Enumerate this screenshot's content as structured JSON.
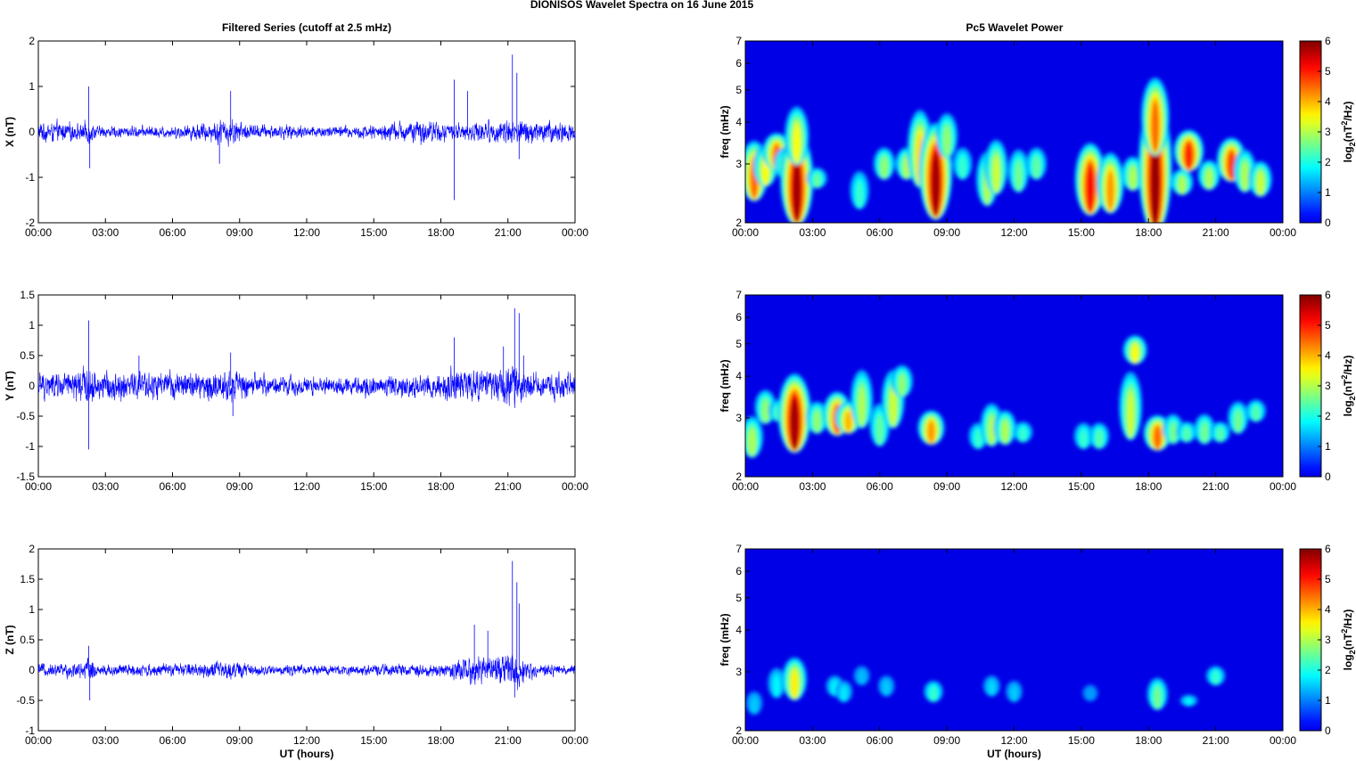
{
  "figure": {
    "title": "DIONISOS Wavelet Spectra on 16 June      2015",
    "left_title": "Filtered Series (cutoff at 2.5 mHz)",
    "right_title": "Pc5 Wavelet Power",
    "xlabel": "UT (hours)"
  },
  "chart_data": [
    {
      "type": "line",
      "component": "X",
      "ylabel": "X (nT)",
      "xlim": [
        0,
        24
      ],
      "ylim": [
        -2,
        2
      ],
      "yticks": [
        -2,
        -1,
        0,
        1,
        2
      ],
      "xticks": [
        "00:00",
        "03:00",
        "06:00",
        "09:00",
        "12:00",
        "15:00",
        "18:00",
        "21:00",
        "00:00"
      ],
      "color": "#0000ff",
      "noise_envelope": [
        [
          0,
          0.25
        ],
        [
          1.0,
          0.25
        ],
        [
          2.0,
          0.2
        ],
        [
          2.2,
          0.35
        ],
        [
          2.6,
          0.15
        ],
        [
          4,
          0.15
        ],
        [
          6,
          0.15
        ],
        [
          7.5,
          0.25
        ],
        [
          8.5,
          0.35
        ],
        [
          9.5,
          0.2
        ],
        [
          11,
          0.18
        ],
        [
          13,
          0.15
        ],
        [
          15,
          0.18
        ],
        [
          16,
          0.25
        ],
        [
          17.5,
          0.3
        ],
        [
          18.5,
          0.2
        ],
        [
          19.5,
          0.25
        ],
        [
          20.5,
          0.3
        ],
        [
          21.3,
          0.35
        ],
        [
          22,
          0.3
        ],
        [
          24,
          0.25
        ]
      ],
      "spikes": [
        [
          2.25,
          1.0
        ],
        [
          2.3,
          -0.8
        ],
        [
          8.6,
          0.9
        ],
        [
          8.1,
          -0.7
        ],
        [
          18.6,
          1.15
        ],
        [
          18.6,
          -1.5
        ],
        [
          19.2,
          0.9
        ],
        [
          21.2,
          1.7
        ],
        [
          21.4,
          1.3
        ],
        [
          21.5,
          -0.6
        ]
      ]
    },
    {
      "type": "line",
      "component": "Y",
      "ylabel": "Y (nT)",
      "xlim": [
        0,
        24
      ],
      "ylim": [
        -1.5,
        1.5
      ],
      "yticks": [
        -1.5,
        -1,
        -0.5,
        0,
        0.5,
        1,
        1.5
      ],
      "xticks": [
        "00:00",
        "03:00",
        "06:00",
        "09:00",
        "12:00",
        "15:00",
        "18:00",
        "21:00",
        "00:00"
      ],
      "color": "#0000ff",
      "noise_envelope": [
        [
          0,
          0.25
        ],
        [
          1.5,
          0.28
        ],
        [
          2.2,
          0.4
        ],
        [
          2.6,
          0.28
        ],
        [
          4.5,
          0.3
        ],
        [
          6,
          0.25
        ],
        [
          8.5,
          0.32
        ],
        [
          10,
          0.2
        ],
        [
          13,
          0.18
        ],
        [
          15,
          0.2
        ],
        [
          17.5,
          0.25
        ],
        [
          18.5,
          0.35
        ],
        [
          20,
          0.3
        ],
        [
          21.2,
          0.4
        ],
        [
          22,
          0.25
        ],
        [
          24,
          0.22
        ]
      ],
      "spikes": [
        [
          2.25,
          1.08
        ],
        [
          2.25,
          -1.05
        ],
        [
          4.5,
          0.5
        ],
        [
          8.6,
          0.55
        ],
        [
          8.7,
          -0.5
        ],
        [
          18.6,
          0.8
        ],
        [
          20.8,
          0.65
        ],
        [
          21.3,
          1.28
        ],
        [
          21.5,
          1.2
        ],
        [
          21.7,
          0.5
        ]
      ]
    },
    {
      "type": "line",
      "component": "Z",
      "ylabel": "Z (nT)",
      "xlim": [
        0,
        24
      ],
      "ylim": [
        -1,
        2
      ],
      "yticks": [
        -1,
        -0.5,
        0,
        0.5,
        1,
        1.5,
        2
      ],
      "xticks": [
        "00:00",
        "03:00",
        "06:00",
        "09:00",
        "12:00",
        "15:00",
        "18:00",
        "21:00",
        "00:00"
      ],
      "color": "#0000ff",
      "noise_envelope": [
        [
          0,
          0.12
        ],
        [
          2.0,
          0.15
        ],
        [
          2.3,
          0.25
        ],
        [
          2.6,
          0.12
        ],
        [
          6,
          0.12
        ],
        [
          8.6,
          0.18
        ],
        [
          10,
          0.1
        ],
        [
          15,
          0.1
        ],
        [
          18,
          0.12
        ],
        [
          18.8,
          0.2
        ],
        [
          19.5,
          0.3
        ],
        [
          20.5,
          0.25
        ],
        [
          21.2,
          0.45
        ],
        [
          21.7,
          0.25
        ],
        [
          22.5,
          0.12
        ],
        [
          24,
          0.1
        ]
      ],
      "spikes": [
        [
          2.25,
          0.4
        ],
        [
          2.3,
          -0.5
        ],
        [
          19.5,
          0.75
        ],
        [
          20.1,
          0.65
        ],
        [
          21.2,
          1.8
        ],
        [
          21.4,
          1.45
        ],
        [
          21.5,
          1.1
        ],
        [
          21.3,
          -0.45
        ]
      ]
    },
    {
      "type": "heatmap",
      "component": "X",
      "ylabel": "freq (mHz)",
      "yscale": "log",
      "xlim": [
        0,
        24
      ],
      "ylim": [
        2,
        7
      ],
      "yticks": [
        2,
        3,
        4,
        5,
        6,
        7
      ],
      "xticks": [
        "00:00",
        "03:00",
        "06:00",
        "09:00",
        "12:00",
        "15:00",
        "18:00",
        "21:00",
        "00:00"
      ],
      "colorbar": {
        "label": "log2(nT²/Hz)",
        "label_base": "log",
        "label_sub": "2",
        "label_rest": "(nT",
        "label_sup": "2",
        "label_end": "/Hz)",
        "ticks": [
          0,
          1,
          2,
          3,
          4,
          5,
          6
        ],
        "colormap": "jet"
      },
      "blobs": [
        [
          0.4,
          2.5,
          3.8,
          4.5
        ],
        [
          0.9,
          2.7,
          3.6,
          3.5
        ],
        [
          1.4,
          3.0,
          3.9,
          4.5
        ],
        [
          1.8,
          2.8,
          3.5,
          3.2
        ],
        [
          2.3,
          2.2,
          4.2,
          5.8
        ],
        [
          2.3,
          3.2,
          4.8,
          3.5
        ],
        [
          3.2,
          2.6,
          3.0,
          2.5
        ],
        [
          5.1,
          2.3,
          3.0,
          2.2
        ],
        [
          6.2,
          2.8,
          3.5,
          2.8
        ],
        [
          7.2,
          2.8,
          3.5,
          3.0
        ],
        [
          7.8,
          2.8,
          4.8,
          3.8
        ],
        [
          8.5,
          2.3,
          4.5,
          5.8
        ],
        [
          9.0,
          3.3,
          4.5,
          2.8
        ],
        [
          9.7,
          2.8,
          3.5,
          2.2
        ],
        [
          10.8,
          2.4,
          3.5,
          3.0
        ],
        [
          11.2,
          2.6,
          3.8,
          3.2
        ],
        [
          12.2,
          2.6,
          3.5,
          2.6
        ],
        [
          13.0,
          2.8,
          3.5,
          2.5
        ],
        [
          15.4,
          2.3,
          3.8,
          5.2
        ],
        [
          16.3,
          2.3,
          3.5,
          4.2
        ],
        [
          17.3,
          2.6,
          3.3,
          3.0
        ],
        [
          18.3,
          2.2,
          5.5,
          5.9
        ],
        [
          18.3,
          3.5,
          6.0,
          4.5
        ],
        [
          19.5,
          2.5,
          3.0,
          3.0
        ],
        [
          19.8,
          3.0,
          4.0,
          5.0
        ],
        [
          20.7,
          2.6,
          3.2,
          3.0
        ],
        [
          21.7,
          2.8,
          3.8,
          4.8
        ],
        [
          22.3,
          2.6,
          3.5,
          3.0
        ],
        [
          23.0,
          2.5,
          3.2,
          3.2
        ]
      ]
    },
    {
      "type": "heatmap",
      "component": "Y",
      "ylabel": "freq (mHz)",
      "yscale": "log",
      "xlim": [
        0,
        24
      ],
      "ylim": [
        2,
        7
      ],
      "yticks": [
        2,
        3,
        4,
        5,
        6,
        7
      ],
      "xticks": [
        "00:00",
        "03:00",
        "06:00",
        "09:00",
        "12:00",
        "15:00",
        "18:00",
        "21:00",
        "00:00"
      ],
      "colorbar": {
        "label": "log2(nT²/Hz)",
        "label_base": "log",
        "label_sub": "2",
        "label_rest": "(nT",
        "label_sup": "2",
        "label_end": "/Hz)",
        "ticks": [
          0,
          1,
          2,
          3,
          4,
          5,
          6
        ],
        "colormap": "jet"
      },
      "blobs": [
        [
          0.3,
          2.4,
          3.2,
          3.0
        ],
        [
          0.9,
          3.0,
          3.8,
          2.8
        ],
        [
          1.5,
          3.0,
          3.5,
          2.5
        ],
        [
          2.2,
          2.6,
          4.5,
          5.8
        ],
        [
          3.2,
          2.8,
          3.5,
          2.8
        ],
        [
          4.1,
          2.8,
          3.8,
          4.6
        ],
        [
          4.6,
          2.8,
          3.5,
          4.0
        ],
        [
          5.2,
          3.0,
          4.5,
          3.0
        ],
        [
          6.0,
          2.6,
          3.5,
          2.5
        ],
        [
          6.6,
          3.0,
          4.5,
          3.2
        ],
        [
          7.0,
          3.6,
          4.5,
          2.8
        ],
        [
          8.3,
          2.6,
          3.3,
          4.2
        ],
        [
          10.4,
          2.5,
          3.0,
          2.2
        ],
        [
          11.0,
          2.6,
          3.5,
          3.0
        ],
        [
          11.6,
          2.6,
          3.3,
          3.0
        ],
        [
          12.4,
          2.6,
          3.0,
          2.2
        ],
        [
          15.1,
          2.5,
          3.0,
          2.2
        ],
        [
          15.8,
          2.5,
          3.0,
          2.4
        ],
        [
          17.2,
          2.8,
          4.5,
          3.2
        ],
        [
          17.4,
          4.5,
          5.5,
          3.5
        ],
        [
          18.4,
          2.5,
          3.2,
          4.5
        ],
        [
          19.1,
          2.6,
          3.2,
          2.6
        ],
        [
          19.7,
          2.6,
          3.0,
          2.4
        ],
        [
          20.5,
          2.6,
          3.2,
          2.6
        ],
        [
          21.2,
          2.6,
          3.0,
          2.4
        ],
        [
          22.0,
          2.8,
          3.5,
          2.6
        ],
        [
          22.8,
          3.0,
          3.5,
          2.4
        ]
      ]
    },
    {
      "type": "heatmap",
      "component": "Z",
      "ylabel": "freq (mHz)",
      "yscale": "log",
      "xlim": [
        0,
        24
      ],
      "ylim": [
        2,
        7
      ],
      "yticks": [
        2,
        3,
        4,
        5,
        6,
        7
      ],
      "xticks": [
        "00:00",
        "03:00",
        "06:00",
        "09:00",
        "12:00",
        "15:00",
        "18:00",
        "21:00",
        "00:00"
      ],
      "colorbar": {
        "label": "log2(nT²/Hz)",
        "label_base": "log",
        "label_sub": "2",
        "label_rest": "(nT",
        "label_sup": "2",
        "label_end": "/Hz)",
        "ticks": [
          0,
          1,
          2,
          3,
          4,
          5,
          6
        ],
        "colormap": "jet"
      },
      "blobs": [
        [
          0.4,
          2.3,
          2.7,
          1.5
        ],
        [
          1.4,
          2.6,
          3.2,
          1.8
        ],
        [
          2.2,
          2.6,
          3.5,
          3.6
        ],
        [
          4.0,
          2.6,
          3.0,
          1.8
        ],
        [
          4.4,
          2.5,
          2.9,
          1.7
        ],
        [
          5.2,
          2.8,
          3.2,
          1.4
        ],
        [
          6.3,
          2.6,
          3.0,
          1.5
        ],
        [
          8.4,
          2.5,
          2.9,
          2.2
        ],
        [
          11.0,
          2.6,
          3.0,
          1.6
        ],
        [
          12.0,
          2.5,
          2.9,
          1.5
        ],
        [
          15.4,
          2.5,
          2.8,
          1.2
        ],
        [
          18.4,
          2.4,
          3.0,
          2.6
        ],
        [
          19.8,
          2.4,
          2.6,
          1.8
        ],
        [
          21.0,
          2.8,
          3.2,
          2.2
        ]
      ]
    }
  ]
}
